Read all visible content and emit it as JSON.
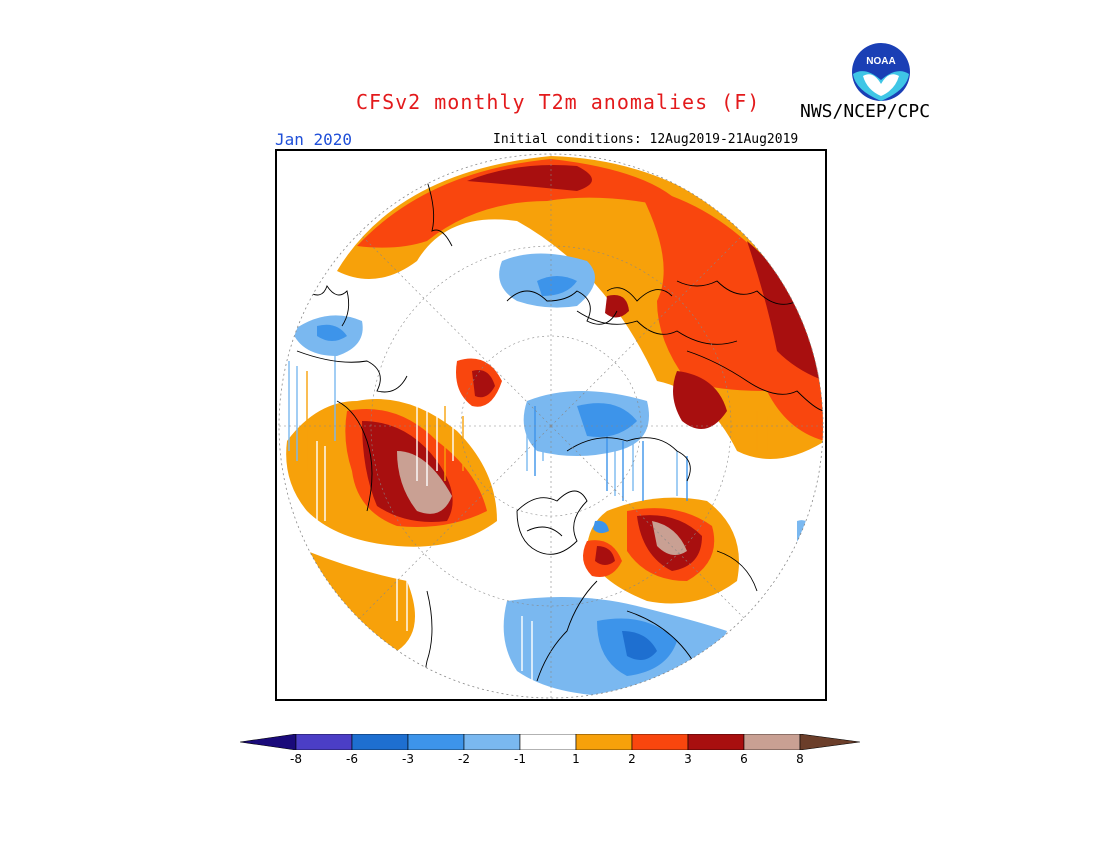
{
  "header": {
    "title": "CFSv2 monthly T2m anomalies (F)",
    "organization": "NWS/NCEP/CPC",
    "logo_text": "NOAA",
    "month": "Jan 2020",
    "initial_conditions": "Initial conditions: 12Aug2019-21Aug2019"
  },
  "map": {
    "projection": "polar-stereographic-north",
    "variable": "T2m anomalies",
    "units": "F"
  },
  "colorbar": {
    "labels": [
      "-8",
      "-6",
      "-3",
      "-2",
      "-1",
      "1",
      "2",
      "3",
      "6",
      "8"
    ],
    "colors": {
      "below_-8": "#1a0a7a",
      "-8_to_-6": "#4b3ec6",
      "-6_to_-3": "#1e6fd0",
      "-3_to_-2": "#3d94ea",
      "-2_to_-1": "#7ab8f0",
      "-1_to_1": "#ffffff",
      "1_to_2": "#f7a10a",
      "2_to_3": "#f9460e",
      "3_to_6": "#a80f0f",
      "6_to_8": "#c9a093",
      "above_8": "#6b3e2a"
    }
  }
}
